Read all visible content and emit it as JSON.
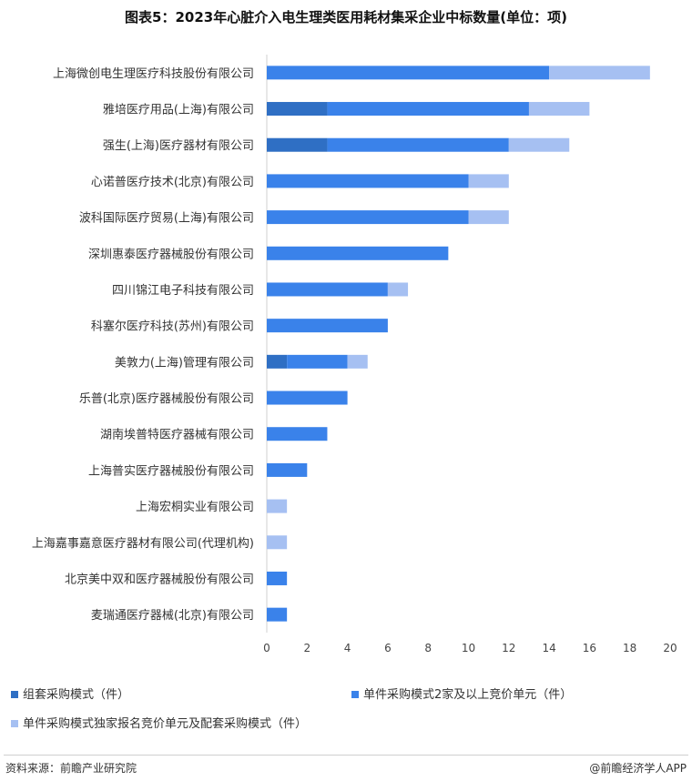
{
  "title": "图表5：2023年心脏介入电生理类医用耗材集采企业中标数量(单位：项)",
  "source": "资料来源：前瞻产业研究院",
  "brand": "@前瞻经济学人APP",
  "colors": {
    "s1": "#2f6fc4",
    "s2": "#3a82ea",
    "s3": "#a6c0f2",
    "axis": "#d0d0d0"
  },
  "chart_data": {
    "type": "bar",
    "orientation": "horizontal",
    "stacked": true,
    "categories": [
      "上海微创电生理医疗科技股份有限公司",
      "雅培医疗用品(上海)有限公司",
      "强生(上海)医疗器材有限公司",
      "心诺普医疗技术(北京)有限公司",
      "波科国际医疗贸易(上海)有限公司",
      "深圳惠泰医疗器械股份有限公司",
      "四川锦江电子科技有限公司",
      "科塞尔医疗科技(苏州)有限公司",
      "美敦力(上海)管理有限公司",
      "乐普(北京)医疗器械股份有限公司",
      "湖南埃普特医疗器械有限公司",
      "上海普实医疗器械股份有限公司",
      "上海宏桐实业有限公司",
      "上海嘉事嘉意医疗器材有限公司(代理机构)",
      "北京美中双和医疗器械股份有限公司",
      "麦瑞通医疗器械(北京)有限公司"
    ],
    "series": [
      {
        "name": "组套采购模式（件）",
        "values": [
          0,
          3,
          3,
          0,
          0,
          0,
          0,
          0,
          1,
          0,
          0,
          0,
          0,
          0,
          0,
          0
        ]
      },
      {
        "name": "单件采购模式2家及以上竞价单元（件）",
        "values": [
          14,
          10,
          9,
          10,
          10,
          9,
          6,
          6,
          3,
          4,
          3,
          2,
          0,
          0,
          1,
          1
        ]
      },
      {
        "name": "单件采购模式独家报名竞价单元及配套采购模式（件）",
        "values": [
          5,
          3,
          3,
          2,
          2,
          0,
          1,
          0,
          1,
          0,
          0,
          0,
          1,
          1,
          0,
          0
        ]
      }
    ],
    "xlim": [
      0,
      20
    ],
    "xticks": [
      "0",
      "2",
      "4",
      "6",
      "8",
      "10",
      "12",
      "14",
      "16",
      "18",
      "20"
    ],
    "grid": false,
    "legend_position": "bottom"
  }
}
